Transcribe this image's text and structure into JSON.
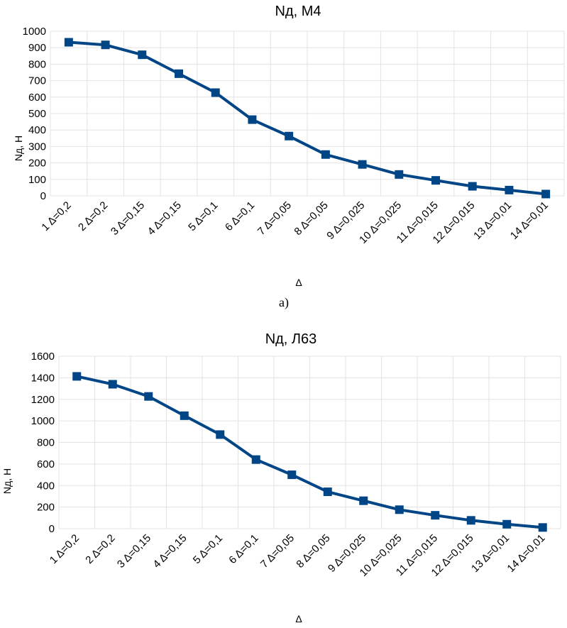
{
  "caption_a": "а)",
  "colors": {
    "series": "#004586",
    "grid": "#e3e3e3"
  },
  "chart_data": [
    {
      "type": "line",
      "title": "Nд, М4",
      "xlabel": "Δ",
      "ylabel": "Nд, Н",
      "ylim": [
        0,
        1000
      ],
      "yticks": [
        "0",
        "100",
        "200",
        "300",
        "400",
        "500",
        "600",
        "700",
        "800",
        "900",
        "1000"
      ],
      "grid": true,
      "legend": "none",
      "marker": "square",
      "categories": [
        "1 Δ=0,2",
        "2 Δ=0,2",
        "3 Δ=0,15",
        "4 Δ=0,15",
        "5 Δ=0,1",
        "6 Δ=0,1",
        "7 Δ=0,05",
        "8 Δ=0,05",
        "9 Δ=0,025",
        "10 Δ=0,025",
        "11 Δ=0,015",
        "12 Δ=0,015",
        "13 Δ=0,01",
        "14 Δ=0,01"
      ],
      "values": [
        933,
        917,
        857,
        742,
        627,
        463,
        363,
        251,
        191,
        130,
        94,
        58,
        35,
        11
      ]
    },
    {
      "type": "line",
      "title": "Nд, Л63",
      "xlabel": "Δ",
      "ylabel": "Nд, Н",
      "ylim": [
        0,
        1600
      ],
      "yticks": [
        "0",
        "200",
        "400",
        "600",
        "800",
        "1000",
        "1200",
        "1400",
        "1600"
      ],
      "grid": true,
      "legend": "none",
      "marker": "square",
      "categories": [
        "1 Δ=0,2",
        "2 Δ=0,2",
        "3 Δ=0,15",
        "4 Δ=0,15",
        "5 Δ=0,1",
        "6 Δ=0,1",
        "7 Δ=0,05",
        "8 Δ=0,05",
        "9 Δ=0,025",
        "10 Δ=0,025",
        "11 Δ=0,015",
        "12 Δ=0,015",
        "13 Δ=0,01",
        "14 Δ=0,01"
      ],
      "values": [
        1413,
        1340,
        1227,
        1048,
        873,
        641,
        500,
        342,
        259,
        176,
        124,
        77,
        41,
        11
      ]
    }
  ]
}
